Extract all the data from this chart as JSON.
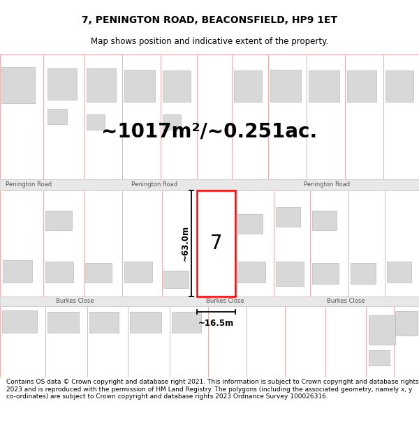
{
  "title": "7, PENINGTON ROAD, BEACONSFIELD, HP9 1ET",
  "subtitle": "Map shows position and indicative extent of the property.",
  "area_text": "~1017m²/~0.251ac.",
  "width_label": "~16.5m",
  "height_label": "~63.0m",
  "property_number": "7",
  "road1": "Penington Road",
  "road2": "Burkes Close",
  "footer_text": "Contains OS data © Crown copyright and database right 2021. This information is subject to Crown copyright and database rights 2023 and is reproduced with the permission of HM Land Registry. The polygons (including the associated geometry, namely x, y co-ordinates) are subject to Crown copyright and database rights 2023 Ordnance Survey 100026316.",
  "bg_color": "#ffffff",
  "map_bg": "#ffffff",
  "road_fill": "#e8e8e8",
  "road_border": "#cccccc",
  "plot_line_color": "#ff0000",
  "dim_line_color": "#000000",
  "lot_stroke": "#f5aaaa",
  "building_fill": "#d8d8d8",
  "building_stroke": "#bbbbbb",
  "title_fontsize": 10,
  "subtitle_fontsize": 8.5,
  "area_fontsize": 20,
  "footer_fontsize": 6.5
}
